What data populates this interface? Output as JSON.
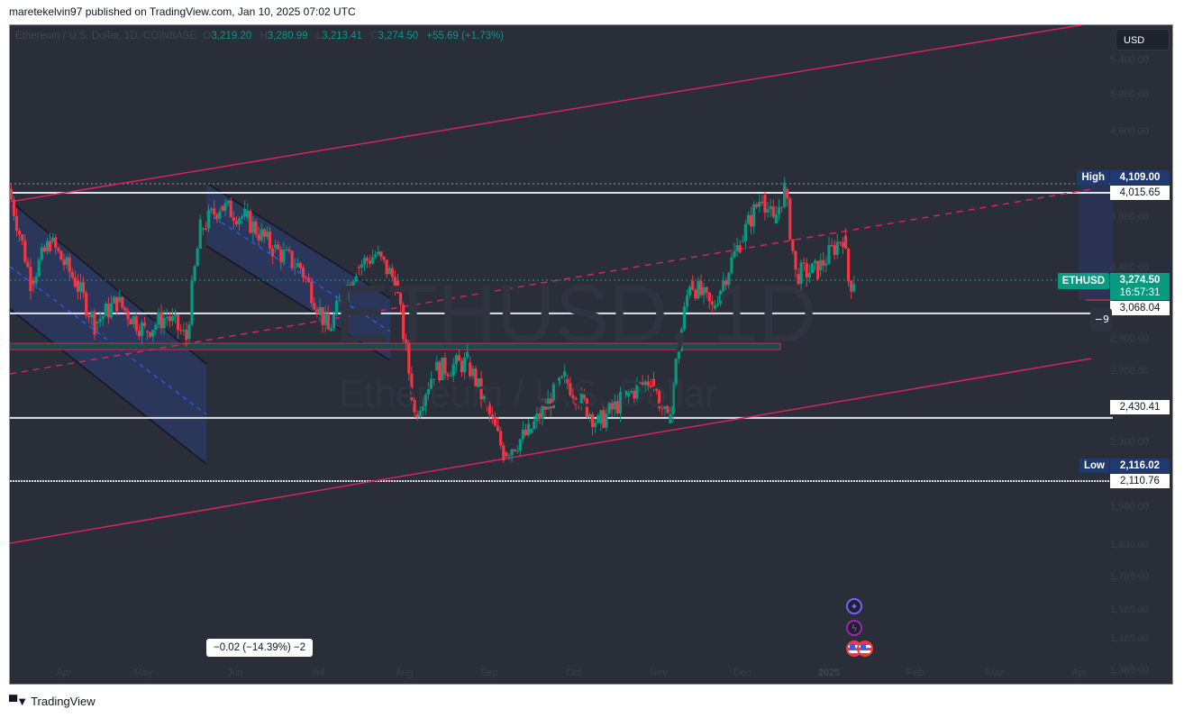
{
  "publish_line": "maretekelvin97 published on TradingView.com, Jan 10, 2025 07:02 UTC",
  "legend": {
    "symbol_desc": "Ethereum / U.S. Dollar, 1D, COINBASE",
    "o_label": "O",
    "open": "3,219.20",
    "h_label": "H",
    "high": "3,280.99",
    "l_label": "L",
    "low": "3,213.41",
    "c_label": "C",
    "close": "3,274.50",
    "change": "+55.69 (+1.73%)"
  },
  "watermark": {
    "ticker": "ETHUSD, 1D",
    "name": "Ethereum / U.S. Dollar"
  },
  "currency_button": "USD",
  "price_tags": {
    "high_label": "High",
    "high_value": "4,109.00",
    "resistance": "4,015.65",
    "symbol": "ETHUSD",
    "last_price": "3,274.50",
    "countdown": "16:57:31",
    "support_1": "3,068.04",
    "support_2": "2,430.41",
    "low_label": "Low",
    "low_value": "2,116.02",
    "support_3": "2,110.76",
    "minus_badge": "−9"
  },
  "measure_label": "−0.02 (−14.39%) −2",
  "events": [
    "star-icon",
    "bolt-icon",
    "us-flag-icon",
    "us-flag-icon"
  ],
  "footer_brand": "TradingView",
  "colors": {
    "background": "#2a2e39",
    "up": "#089981",
    "down": "#f23645",
    "trend": "#d6245f",
    "channel_fill": "#2b3a66",
    "zone_fill": "#1c4a45",
    "hline": "#e0e3eb",
    "navy_tag": "#1e3a6e"
  },
  "chart_data": {
    "type": "candlestick",
    "title": "Ethereum / U.S. Dollar, 1D, COINBASE",
    "xlabel": "",
    "ylabel": "USD",
    "x_ticks": [
      "Apr",
      "May",
      "Jun",
      "Jul",
      "Aug",
      "Sep",
      "Oct",
      "Nov",
      "Dec",
      "2025",
      "Feb",
      "Mar",
      "Apr"
    ],
    "y_ticks": [
      "5,400.00",
      "5,000.00",
      "4,600.00",
      "3,800.00",
      "3,400.00",
      "2,900.00",
      "2,700.00",
      "2,500.00",
      "2,300.00",
      "2,150.00",
      "1,990.00",
      "1,830.00",
      "1,705.00",
      "1,585.00",
      "1,485.00",
      "1,385.00"
    ],
    "ylim": [
      1300,
      5600
    ],
    "scale": "log",
    "last": {
      "open": 3219.2,
      "high": 3280.99,
      "low": 3213.41,
      "close": 3274.5,
      "change": 55.69,
      "change_pct": 1.73
    },
    "range_high": 4109.0,
    "range_low": 2116.02,
    "horizontal_levels": [
      4015.65,
      3068.04,
      2430.41,
      2110.76
    ],
    "demand_zone": [
      2830,
      2870
    ],
    "price_path": [
      [
        "2024-03-12",
        4050
      ],
      [
        "2024-03-20",
        3300
      ],
      [
        "2024-03-27",
        3600
      ],
      [
        "2024-04-05",
        3300
      ],
      [
        "2024-04-12",
        3000
      ],
      [
        "2024-04-20",
        3150
      ],
      [
        "2024-04-30",
        2950
      ],
      [
        "2024-05-08",
        3050
      ],
      [
        "2024-05-15",
        2900
      ],
      [
        "2024-05-20",
        3700
      ],
      [
        "2024-05-27",
        3900
      ],
      [
        "2024-06-05",
        3800
      ],
      [
        "2024-06-15",
        3550
      ],
      [
        "2024-06-25",
        3400
      ],
      [
        "2024-07-05",
        2950
      ],
      [
        "2024-07-15",
        3400
      ],
      [
        "2024-07-22",
        3500
      ],
      [
        "2024-07-29",
        3300
      ],
      [
        "2024-08-05",
        2450
      ],
      [
        "2024-08-12",
        2700
      ],
      [
        "2024-08-24",
        2750
      ],
      [
        "2024-09-06",
        2250
      ],
      [
        "2024-09-15",
        2350
      ],
      [
        "2024-09-28",
        2650
      ],
      [
        "2024-10-10",
        2400
      ],
      [
        "2024-10-20",
        2550
      ],
      [
        "2024-10-29",
        2650
      ],
      [
        "2024-11-04",
        2400
      ],
      [
        "2024-11-12",
        3300
      ],
      [
        "2024-11-20",
        3100
      ],
      [
        "2024-11-30",
        3600
      ],
      [
        "2024-12-08",
        4000
      ],
      [
        "2024-12-12",
        3750
      ],
      [
        "2024-12-16",
        4050
      ],
      [
        "2024-12-20",
        3350
      ],
      [
        "2024-12-28",
        3380
      ],
      [
        "2025-01-06",
        3650
      ],
      [
        "2025-01-08",
        3300
      ],
      [
        "2025-01-10",
        3274.5
      ]
    ],
    "trend_lines": [
      {
        "name": "upper-channel",
        "style": "solid"
      },
      {
        "name": "mid-channel",
        "style": "dashed"
      },
      {
        "name": "lower-channel",
        "style": "solid"
      }
    ],
    "legend_position": "top-left",
    "grid": false
  }
}
